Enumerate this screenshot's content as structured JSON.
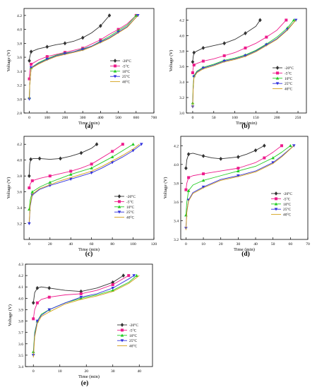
{
  "legend_series": [
    "-20°C",
    "-5°C",
    "10°C",
    "25°C",
    "40°C"
  ],
  "series_colors": [
    "#333333",
    "#ee1c8c",
    "#22cc22",
    "#3333dd",
    "#d4a017"
  ],
  "chart_data": [
    {
      "type": "line",
      "panel": "(a)",
      "xlabel": "Time (min)",
      "ylabel": "Voltage (V)",
      "xlim": [
        -30,
        700
      ],
      "ylim": [
        2.8,
        4.3
      ],
      "xticks": [
        0,
        100,
        200,
        300,
        400,
        500,
        600,
        700
      ],
      "yticks": [
        2.8,
        3.0,
        3.2,
        3.4,
        3.6,
        3.8,
        4.0,
        4.2
      ],
      "grid": false,
      "legend_position": "center-right",
      "series": [
        {
          "name": "-20°C",
          "x": [
            0,
            2,
            10,
            50,
            100,
            150,
            200,
            250,
            300,
            350,
            400,
            450
          ],
          "y": [
            3.55,
            3.6,
            3.68,
            3.72,
            3.75,
            3.78,
            3.8,
            3.83,
            3.88,
            3.95,
            4.05,
            4.2
          ]
        },
        {
          "name": "-5°C",
          "x": [
            0,
            2,
            10,
            50,
            100,
            150,
            200,
            250,
            300,
            350,
            400,
            450,
            500,
            550,
            600
          ],
          "y": [
            3.29,
            3.4,
            3.5,
            3.56,
            3.61,
            3.64,
            3.67,
            3.7,
            3.73,
            3.79,
            3.85,
            3.93,
            4.0,
            4.08,
            4.2
          ]
        },
        {
          "name": "10°C",
          "x": [
            0,
            2,
            10,
            50,
            100,
            150,
            200,
            250,
            300,
            350,
            400,
            450,
            500,
            550,
            600
          ],
          "y": [
            3.02,
            3.2,
            3.45,
            3.52,
            3.58,
            3.63,
            3.66,
            3.68,
            3.72,
            3.76,
            3.83,
            3.9,
            3.98,
            4.06,
            4.2
          ]
        },
        {
          "name": "25°C",
          "x": [
            0,
            2,
            10,
            50,
            100,
            150,
            200,
            250,
            300,
            350,
            400,
            450,
            500,
            550,
            610
          ],
          "y": [
            3.0,
            3.2,
            3.45,
            3.51,
            3.57,
            3.62,
            3.65,
            3.68,
            3.71,
            3.76,
            3.82,
            3.88,
            3.96,
            4.04,
            4.2
          ]
        },
        {
          "name": "40°C",
          "x": [
            0,
            2,
            10,
            50,
            100,
            150,
            200,
            250,
            300,
            350,
            400,
            450,
            500,
            550,
            610
          ],
          "y": [
            3.0,
            3.2,
            3.44,
            3.5,
            3.56,
            3.61,
            3.64,
            3.67,
            3.7,
            3.75,
            3.81,
            3.87,
            3.95,
            4.03,
            4.2
          ]
        }
      ]
    },
    {
      "type": "line",
      "panel": "(b)",
      "xlabel": "Time (min)",
      "ylabel": "Voltage (V)",
      "xlim": [
        -15,
        270
      ],
      "ylim": [
        3.0,
        4.35
      ],
      "xticks": [
        0,
        50,
        100,
        150,
        200,
        250
      ],
      "yticks": [
        3.0,
        3.2,
        3.4,
        3.6,
        3.8,
        4.0,
        4.2
      ],
      "grid": false,
      "legend_position": "center-right",
      "series": [
        {
          "name": "-20°C",
          "x": [
            0,
            1,
            3,
            10,
            25,
            50,
            75,
            100,
            125,
            150,
            160
          ],
          "y": [
            3.66,
            3.72,
            3.78,
            3.8,
            3.84,
            3.87,
            3.9,
            3.95,
            4.03,
            4.12,
            4.2
          ]
        },
        {
          "name": "-5°C",
          "x": [
            0,
            1,
            3,
            10,
            25,
            50,
            75,
            100,
            125,
            150,
            175,
            200,
            222
          ],
          "y": [
            3.52,
            3.58,
            3.62,
            3.64,
            3.67,
            3.7,
            3.74,
            3.78,
            3.84,
            3.9,
            3.98,
            4.07,
            4.2
          ]
        },
        {
          "name": "10°C",
          "x": [
            0,
            1,
            3,
            10,
            25,
            50,
            75,
            100,
            125,
            150,
            175,
            200,
            225,
            240
          ],
          "y": [
            3.13,
            3.35,
            3.48,
            3.54,
            3.59,
            3.63,
            3.68,
            3.71,
            3.75,
            3.81,
            3.89,
            3.98,
            4.1,
            4.2
          ]
        },
        {
          "name": "25°C",
          "x": [
            0,
            1,
            3,
            10,
            25,
            50,
            75,
            100,
            125,
            150,
            175,
            200,
            225,
            245
          ],
          "y": [
            3.08,
            3.3,
            3.47,
            3.53,
            3.58,
            3.62,
            3.67,
            3.7,
            3.74,
            3.8,
            3.88,
            3.96,
            4.08,
            4.2
          ]
        },
        {
          "name": "40°C",
          "x": [
            0,
            1,
            3,
            10,
            25,
            50,
            75,
            100,
            125,
            150,
            175,
            200,
            225,
            245
          ],
          "y": [
            3.07,
            3.3,
            3.46,
            3.52,
            3.57,
            3.61,
            3.66,
            3.69,
            3.73,
            3.79,
            3.87,
            3.95,
            4.07,
            4.2
          ]
        }
      ]
    },
    {
      "type": "line",
      "panel": "(c)",
      "xlabel": "Time (min)",
      "ylabel": "Voltage (V)",
      "xlim": [
        -5,
        120
      ],
      "ylim": [
        3.0,
        4.3
      ],
      "xticks": [
        0,
        20,
        40,
        60,
        80,
        100,
        120
      ],
      "yticks": [
        3.2,
        3.4,
        3.6,
        3.8,
        4.0,
        4.2
      ],
      "grid": false,
      "legend_position": "center-right",
      "series": [
        {
          "name": "-20°C",
          "x": [
            0,
            0.5,
            1.5,
            4,
            10,
            20,
            30,
            40,
            50,
            60,
            65
          ],
          "y": [
            3.8,
            3.95,
            4.01,
            4.02,
            4.02,
            4.01,
            4.02,
            4.05,
            4.09,
            4.15,
            4.2
          ]
        },
        {
          "name": "-5°C",
          "x": [
            0,
            1,
            3,
            10,
            20,
            30,
            40,
            50,
            60,
            70,
            80,
            90
          ],
          "y": [
            3.65,
            3.7,
            3.74,
            3.77,
            3.8,
            3.83,
            3.86,
            3.9,
            3.95,
            4.03,
            4.11,
            4.2
          ]
        },
        {
          "name": "10°C",
          "x": [
            0,
            1,
            3,
            10,
            20,
            30,
            40,
            50,
            60,
            70,
            80,
            90,
            100
          ],
          "y": [
            3.38,
            3.5,
            3.6,
            3.66,
            3.72,
            3.77,
            3.82,
            3.86,
            3.9,
            3.97,
            4.04,
            4.12,
            4.2
          ]
        },
        {
          "name": "25°C",
          "x": [
            0,
            1,
            3,
            10,
            20,
            30,
            40,
            50,
            60,
            70,
            80,
            90,
            100,
            108
          ],
          "y": [
            3.2,
            3.42,
            3.56,
            3.63,
            3.68,
            3.72,
            3.76,
            3.8,
            3.84,
            3.9,
            3.97,
            4.04,
            4.12,
            4.2
          ]
        },
        {
          "name": "40°C",
          "x": [
            0,
            1,
            3,
            10,
            20,
            30,
            40,
            50,
            60,
            70,
            80,
            90,
            100,
            106
          ],
          "y": [
            3.22,
            3.44,
            3.57,
            3.64,
            3.69,
            3.74,
            3.78,
            3.82,
            3.86,
            3.92,
            3.99,
            4.06,
            4.14,
            4.2
          ]
        }
      ]
    },
    {
      "type": "line",
      "panel": "(d)",
      "xlabel": "Time (min)",
      "ylabel": "Voltage (V)",
      "xlim": [
        -3,
        70
      ],
      "ylim": [
        3.2,
        4.3
      ],
      "xticks": [
        0,
        10,
        20,
        30,
        40,
        50,
        60,
        70
      ],
      "yticks": [
        3.2,
        3.4,
        3.6,
        3.8,
        4.0,
        4.2
      ],
      "grid": false,
      "legend_position": "center-right",
      "series": [
        {
          "name": "-20°C",
          "x": [
            0,
            0.5,
            1.5,
            4,
            10,
            15,
            20,
            25,
            30,
            35,
            40,
            45
          ],
          "y": [
            3.96,
            4.05,
            4.11,
            4.12,
            4.09,
            4.07,
            4.06,
            4.07,
            4.08,
            4.11,
            4.15,
            4.2
          ]
        },
        {
          "name": "-5°C",
          "x": [
            0,
            0.5,
            1.5,
            4,
            10,
            20,
            30,
            40,
            45,
            50,
            55
          ],
          "y": [
            3.73,
            3.8,
            3.86,
            3.88,
            3.9,
            3.93,
            3.96,
            4.02,
            4.07,
            4.13,
            4.2
          ]
        },
        {
          "name": "10°C",
          "x": [
            0,
            0.5,
            1.5,
            4,
            10,
            20,
            30,
            40,
            50,
            55,
            60
          ],
          "y": [
            3.46,
            3.6,
            3.72,
            3.78,
            3.83,
            3.88,
            3.93,
            3.98,
            4.07,
            4.13,
            4.2
          ]
        },
        {
          "name": "25°C",
          "x": [
            0,
            0.5,
            1.5,
            4,
            10,
            20,
            30,
            40,
            50,
            55,
            62
          ],
          "y": [
            3.32,
            3.5,
            3.62,
            3.7,
            3.76,
            3.84,
            3.88,
            3.93,
            4.02,
            4.09,
            4.2
          ]
        },
        {
          "name": "40°C",
          "x": [
            0,
            0.5,
            1.5,
            4,
            10,
            20,
            30,
            40,
            50,
            55,
            62
          ],
          "y": [
            3.3,
            3.49,
            3.61,
            3.69,
            3.75,
            3.83,
            3.87,
            3.92,
            4.01,
            4.08,
            4.2
          ]
        }
      ]
    },
    {
      "type": "line",
      "panel": "(e)",
      "xlabel": "Time (min)",
      "ylabel": "Voltage (V)",
      "xlim": [
        -3,
        45
      ],
      "ylim": [
        3.4,
        4.3
      ],
      "xticks": [
        0,
        10,
        20,
        30,
        40
      ],
      "yticks": [
        3.4,
        3.5,
        3.6,
        3.7,
        3.8,
        3.9,
        4.0,
        4.1,
        4.2,
        4.3
      ],
      "grid": false,
      "legend_position": "center-right",
      "series": [
        {
          "name": "-20°C",
          "x": [
            0,
            0.5,
            1.5,
            3,
            6,
            12,
            18,
            24,
            30,
            34
          ],
          "y": [
            3.96,
            4.05,
            4.09,
            4.1,
            4.09,
            4.07,
            4.06,
            4.09,
            4.14,
            4.2
          ]
        },
        {
          "name": "-5°C",
          "x": [
            0,
            0.5,
            1.5,
            3,
            6,
            12,
            18,
            24,
            30,
            36
          ],
          "y": [
            3.82,
            3.9,
            3.96,
            3.99,
            4.01,
            4.03,
            4.04,
            4.07,
            4.12,
            4.2
          ]
        },
        {
          "name": "10°C",
          "x": [
            0,
            0.5,
            1.5,
            3,
            6,
            12,
            18,
            24,
            30,
            36,
            39
          ],
          "y": [
            3.53,
            3.7,
            3.8,
            3.86,
            3.9,
            3.96,
            4.0,
            4.03,
            4.07,
            4.14,
            4.2
          ]
        },
        {
          "name": "25°C",
          "x": [
            0,
            0.5,
            1.5,
            3,
            6,
            12,
            18,
            24,
            30,
            36,
            38
          ],
          "y": [
            3.5,
            3.68,
            3.8,
            3.85,
            3.9,
            3.96,
            4.01,
            4.04,
            4.09,
            4.17,
            4.2
          ]
        },
        {
          "name": "40°C",
          "x": [
            0,
            0.5,
            1.5,
            3,
            6,
            12,
            18,
            24,
            30,
            36,
            40
          ],
          "y": [
            3.48,
            3.66,
            3.78,
            3.84,
            3.88,
            3.95,
            3.99,
            4.02,
            4.06,
            4.13,
            4.2
          ]
        }
      ]
    }
  ]
}
